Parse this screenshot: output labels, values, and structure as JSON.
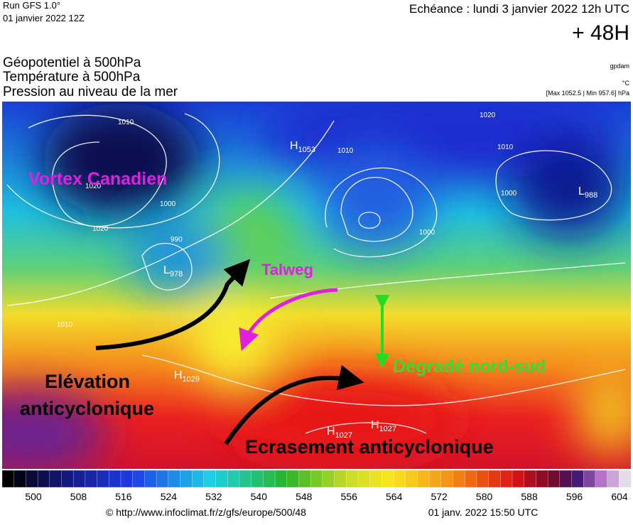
{
  "header": {
    "run": "Run GFS 1.0°",
    "run_date": "01 janvier 2022 12Z",
    "valid": "Echéance : lundi 3 janvier 2022 12h UTC",
    "lead": "+ 48H"
  },
  "fields": [
    "Géopotentiel à 500hPa",
    "Température à 500hPa",
    "Pression au niveau de la mer"
  ],
  "units": {
    "geopotential": "gpdam",
    "temperature": "°C",
    "pressure": "[Max 1052.5 | Min 957.6] hPa"
  },
  "centers": [
    {
      "letter": "H",
      "value": 1053
    },
    {
      "letter": "L",
      "value": 988
    },
    {
      "letter": "L",
      "value": 978
    },
    {
      "letter": "H",
      "value": 1029
    },
    {
      "letter": "H",
      "value": 1027
    },
    {
      "letter": "H",
      "value": 1027
    }
  ],
  "isobar_labels": [
    1010,
    1020,
    1000,
    1010,
    990,
    1020,
    1010,
    1000,
    1010,
    1000,
    1020
  ],
  "annotations": {
    "vortex": "Vortex Canadien",
    "talweg": "Talweg",
    "gradient": "Dégradé nord-sud",
    "elevation": [
      "Elévation",
      "anticyclonique"
    ],
    "crushing": "Ecrasement anticyclonique"
  },
  "legend": {
    "labels": [
      500,
      508,
      516,
      524,
      532,
      540,
      548,
      556,
      564,
      572,
      580,
      588,
      596,
      604
    ]
  },
  "footer": {
    "source": "© http://www.infoclimat.fr/z/gfs/europe/500/48",
    "generated": "01 janv. 2022 15:50 UTC"
  }
}
